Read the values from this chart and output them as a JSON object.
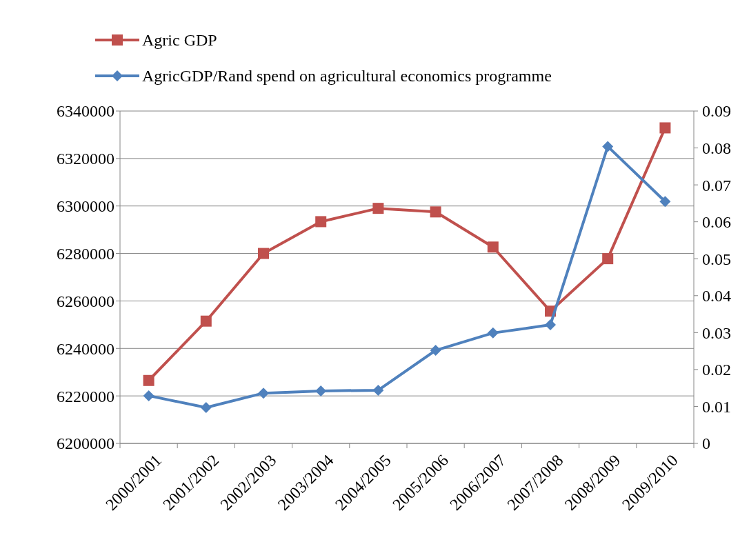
{
  "chart_data": {
    "type": "line",
    "categories": [
      "2000/2001",
      "2001/2002",
      "2002/2003",
      "2003/2004",
      "2004/2005",
      "2005/2006",
      "2006/2007",
      "2007/2008",
      "2008/2009",
      "2009/2010"
    ],
    "series": [
      {
        "name": "Agric GDP",
        "color": "#c0504d",
        "marker": "square",
        "values": [
          6226500,
          6251500,
          6280000,
          6293400,
          6299000,
          6297500,
          6282700,
          6255700,
          6277800,
          6332900
        ]
      },
      {
        "name": "AgricGDP/Rand spend on agricultural economics programme",
        "color": "#4f81bd",
        "marker": "diamond",
        "axis": "y2",
        "values": [
          0.0129,
          0.0097,
          0.0136,
          0.0142,
          0.0144,
          0.0252,
          0.0299,
          0.0321,
          0.0804,
          0.0655
        ]
      }
    ],
    "ylim": [
      6200000,
      6340000
    ],
    "yticks": [
      6200000,
      6220000,
      6240000,
      6260000,
      6280000,
      6300000,
      6320000,
      6340000
    ],
    "y2lim": [
      0,
      0.09
    ],
    "y2ticks": [
      0,
      0.01,
      0.02,
      0.03,
      0.04,
      0.05,
      0.06,
      0.07,
      0.08,
      0.09
    ],
    "grid": "y",
    "legend": "top left"
  }
}
